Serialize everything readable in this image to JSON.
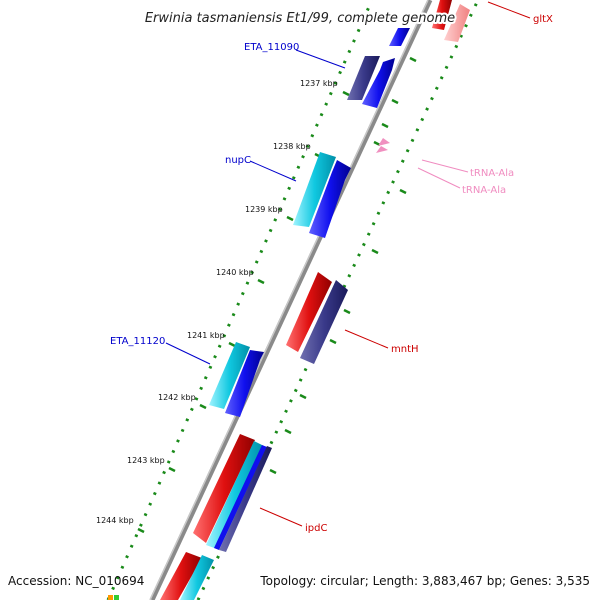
{
  "title": "Erwinia tasmaniensis Et1/99, complete genome",
  "footer": {
    "accession_prefix": "Accession:",
    "accession": "NC_010694",
    "topology_prefix": "Topology:",
    "topology": "circular",
    "length_prefix": "Length:",
    "length": "3,883,467 bp",
    "genes_prefix": "Genes:",
    "genes": "3,535"
  },
  "colors": {
    "backbone": "#8a8a8a",
    "gc_dots": "#1a8a1a",
    "forward_cds": "#1010ee",
    "reverse_cds": "#e01010",
    "forward_alt": "#202080",
    "cyan_cds": "#10c8e0",
    "trna": "#f090c0",
    "label_blue": "#0000cc",
    "label_red": "#cc0000",
    "label_pink": "#f08cc0"
  },
  "ticks": [
    {
      "label": "1237 kbp",
      "kbp": 1237
    },
    {
      "label": "1238 kbp",
      "kbp": 1238
    },
    {
      "label": "1239 kbp",
      "kbp": 1239
    },
    {
      "label": "1240 kbp",
      "kbp": 1240
    },
    {
      "label": "1241 kbp",
      "kbp": 1241
    },
    {
      "label": "1242 kbp",
      "kbp": 1242
    },
    {
      "label": "1243 kbp",
      "kbp": 1243
    },
    {
      "label": "1244 kbp",
      "kbp": 1244
    }
  ],
  "gene_labels": [
    {
      "name": "ETA_11090",
      "color": "blue"
    },
    {
      "name": "nupC",
      "color": "blue"
    },
    {
      "name": "ETA_11120",
      "color": "blue"
    },
    {
      "name": "gltX",
      "color": "red"
    },
    {
      "name": "mntH",
      "color": "red"
    },
    {
      "name": "ipdC",
      "color": "red"
    },
    {
      "name": "tRNA-Ala",
      "color": "pink"
    },
    {
      "name": "tRNA-Ala",
      "color": "pink"
    }
  ]
}
